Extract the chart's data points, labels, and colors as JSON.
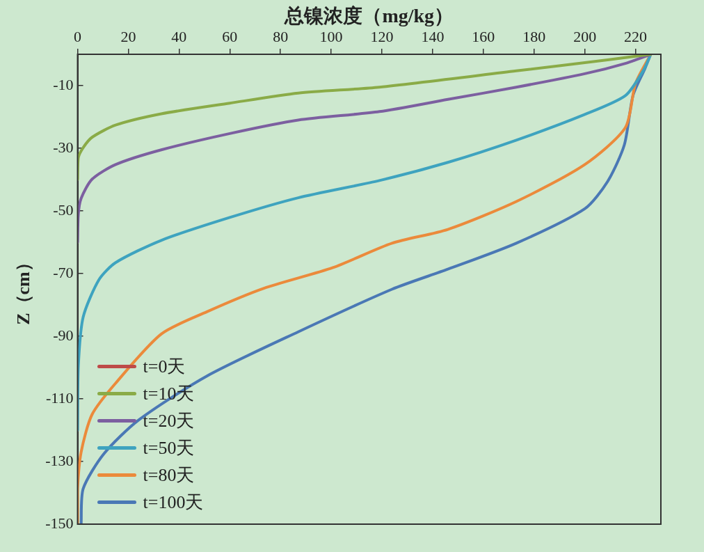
{
  "chart_data": {
    "type": "line",
    "xlabel": "总镍浓度（mg/kg）",
    "ylabel": "Z（cm）",
    "xlim": [
      0,
      230
    ],
    "xticks": [
      0,
      20,
      40,
      60,
      80,
      100,
      120,
      140,
      160,
      180,
      200,
      220
    ],
    "ylim": [
      -150,
      0
    ],
    "yticks": [
      -10,
      -30,
      -50,
      -70,
      -90,
      -110,
      -130,
      -150
    ],
    "grid": false,
    "legend": "bottom left",
    "series": [
      {
        "name": "t=0天",
        "color": "#be4b48"
      },
      {
        "name": "t=10天",
        "color": "#8aab47",
        "x": [
          226,
          209,
          173,
          119,
          87,
          60,
          33,
          15,
          5.7,
          2.2,
          0.3,
          0
        ],
        "values": [
          0,
          -1.8,
          -5.3,
          -10.5,
          -12.4,
          -15.6,
          -19,
          -22.6,
          -26.5,
          -29.8,
          -33,
          -40
        ]
      },
      {
        "name": "t=20天",
        "color": "#7c5fa0",
        "x": [
          226,
          216,
          200,
          173,
          146,
          119,
          87,
          60,
          33,
          15,
          5.7,
          1.4,
          0.3,
          0
        ],
        "values": [
          0,
          -2.9,
          -6.2,
          -10.5,
          -14.4,
          -18.3,
          -21,
          -25.3,
          -30.5,
          -35.2,
          -39.9,
          -46,
          -51,
          -60
        ]
      },
      {
        "name": "t=50天",
        "color": "#3ea3bf",
        "x": [
          226,
          223,
          216,
          200,
          173,
          146,
          119,
          87,
          60,
          33,
          15,
          8.4,
          2.2,
          0.3,
          0
        ],
        "values": [
          0,
          -5.3,
          -13.2,
          -19.2,
          -27.4,
          -34.5,
          -40.3,
          -45.8,
          -52.1,
          -59.4,
          -66.5,
          -72,
          -83.9,
          -99.5,
          -120
        ]
      },
      {
        "name": "t=80天",
        "color": "#eb8a3b",
        "x": [
          226,
          220,
          216,
          200,
          173,
          146,
          124,
          100.7,
          73.5,
          51,
          33,
          15,
          5.7,
          1.4,
          0,
          0
        ],
        "values": [
          0,
          -9.3,
          -23.4,
          -35.2,
          -47,
          -55.9,
          -60.3,
          -68.1,
          -74.7,
          -82.2,
          -89.3,
          -105,
          -115,
          -127,
          -138.7,
          -150
        ]
      },
      {
        "name": "t=100天",
        "color": "#4a78b5",
        "x": [
          226,
          223.7,
          219,
          215.6,
          209,
          200,
          173,
          146,
          124,
          87,
          51,
          24,
          10.3,
          2.2,
          1.4
        ],
        "values": [
          0,
          -4.6,
          -13.2,
          -28.9,
          -40.6,
          -49.3,
          -60.3,
          -68.6,
          -75,
          -88.6,
          -102.7,
          -116.8,
          -127.6,
          -138.7,
          -150
        ]
      }
    ]
  }
}
